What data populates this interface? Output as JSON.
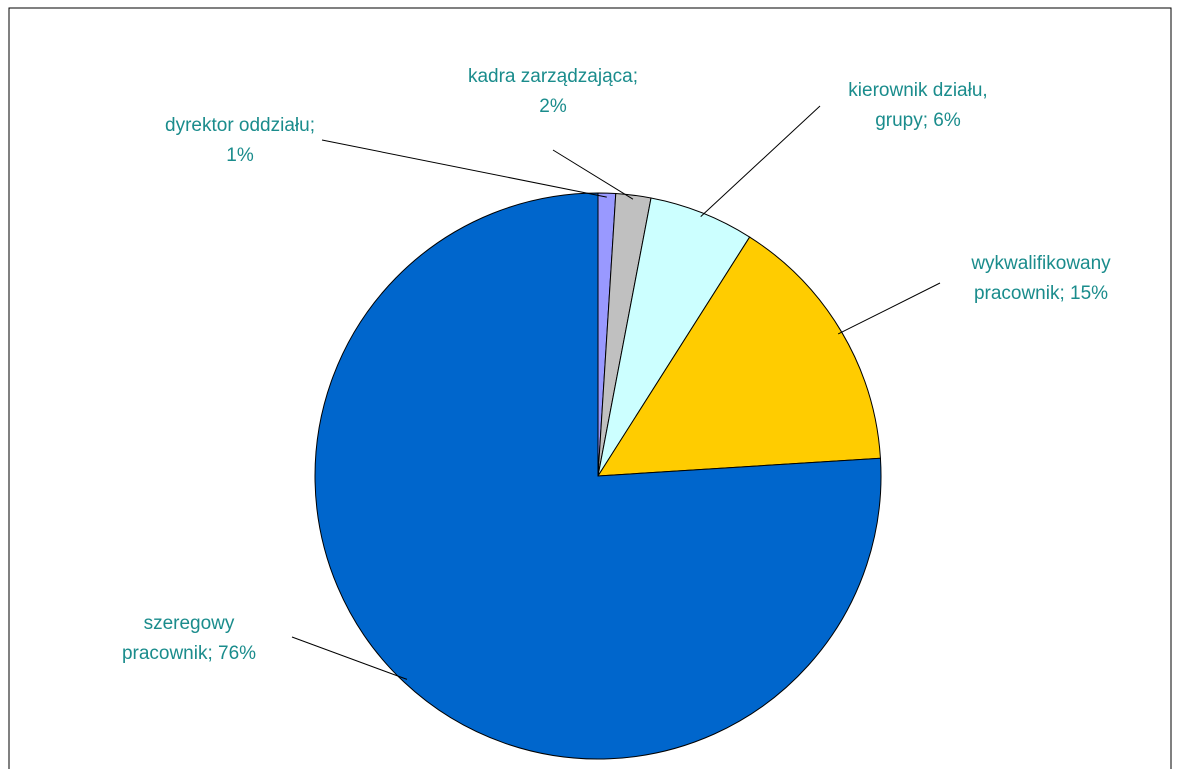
{
  "chart_data": {
    "type": "pie",
    "title": "",
    "slices": [
      {
        "label_lines": [
          "dyrektor oddziału;",
          "1%"
        ],
        "value": 1,
        "color": "#9999ff"
      },
      {
        "label_lines": [
          "kadra zarządzająca;",
          "2%"
        ],
        "value": 2,
        "color": "#c0c0c0"
      },
      {
        "label_lines": [
          "kierownik działu,",
          "grupy; 6%"
        ],
        "value": 6,
        "color": "#ccffff"
      },
      {
        "label_lines": [
          "wykwalifikowany",
          "pracownik; 15%"
        ],
        "value": 15,
        "color": "#ffcc00"
      },
      {
        "label_lines": [
          "szeregowy",
          "pracownik; 76%"
        ],
        "value": 76,
        "color": "#0066cc"
      }
    ],
    "start_angle": "12 o'clock",
    "direction": "clockwise",
    "label_color": "#1a8c8c",
    "legend": "none"
  }
}
